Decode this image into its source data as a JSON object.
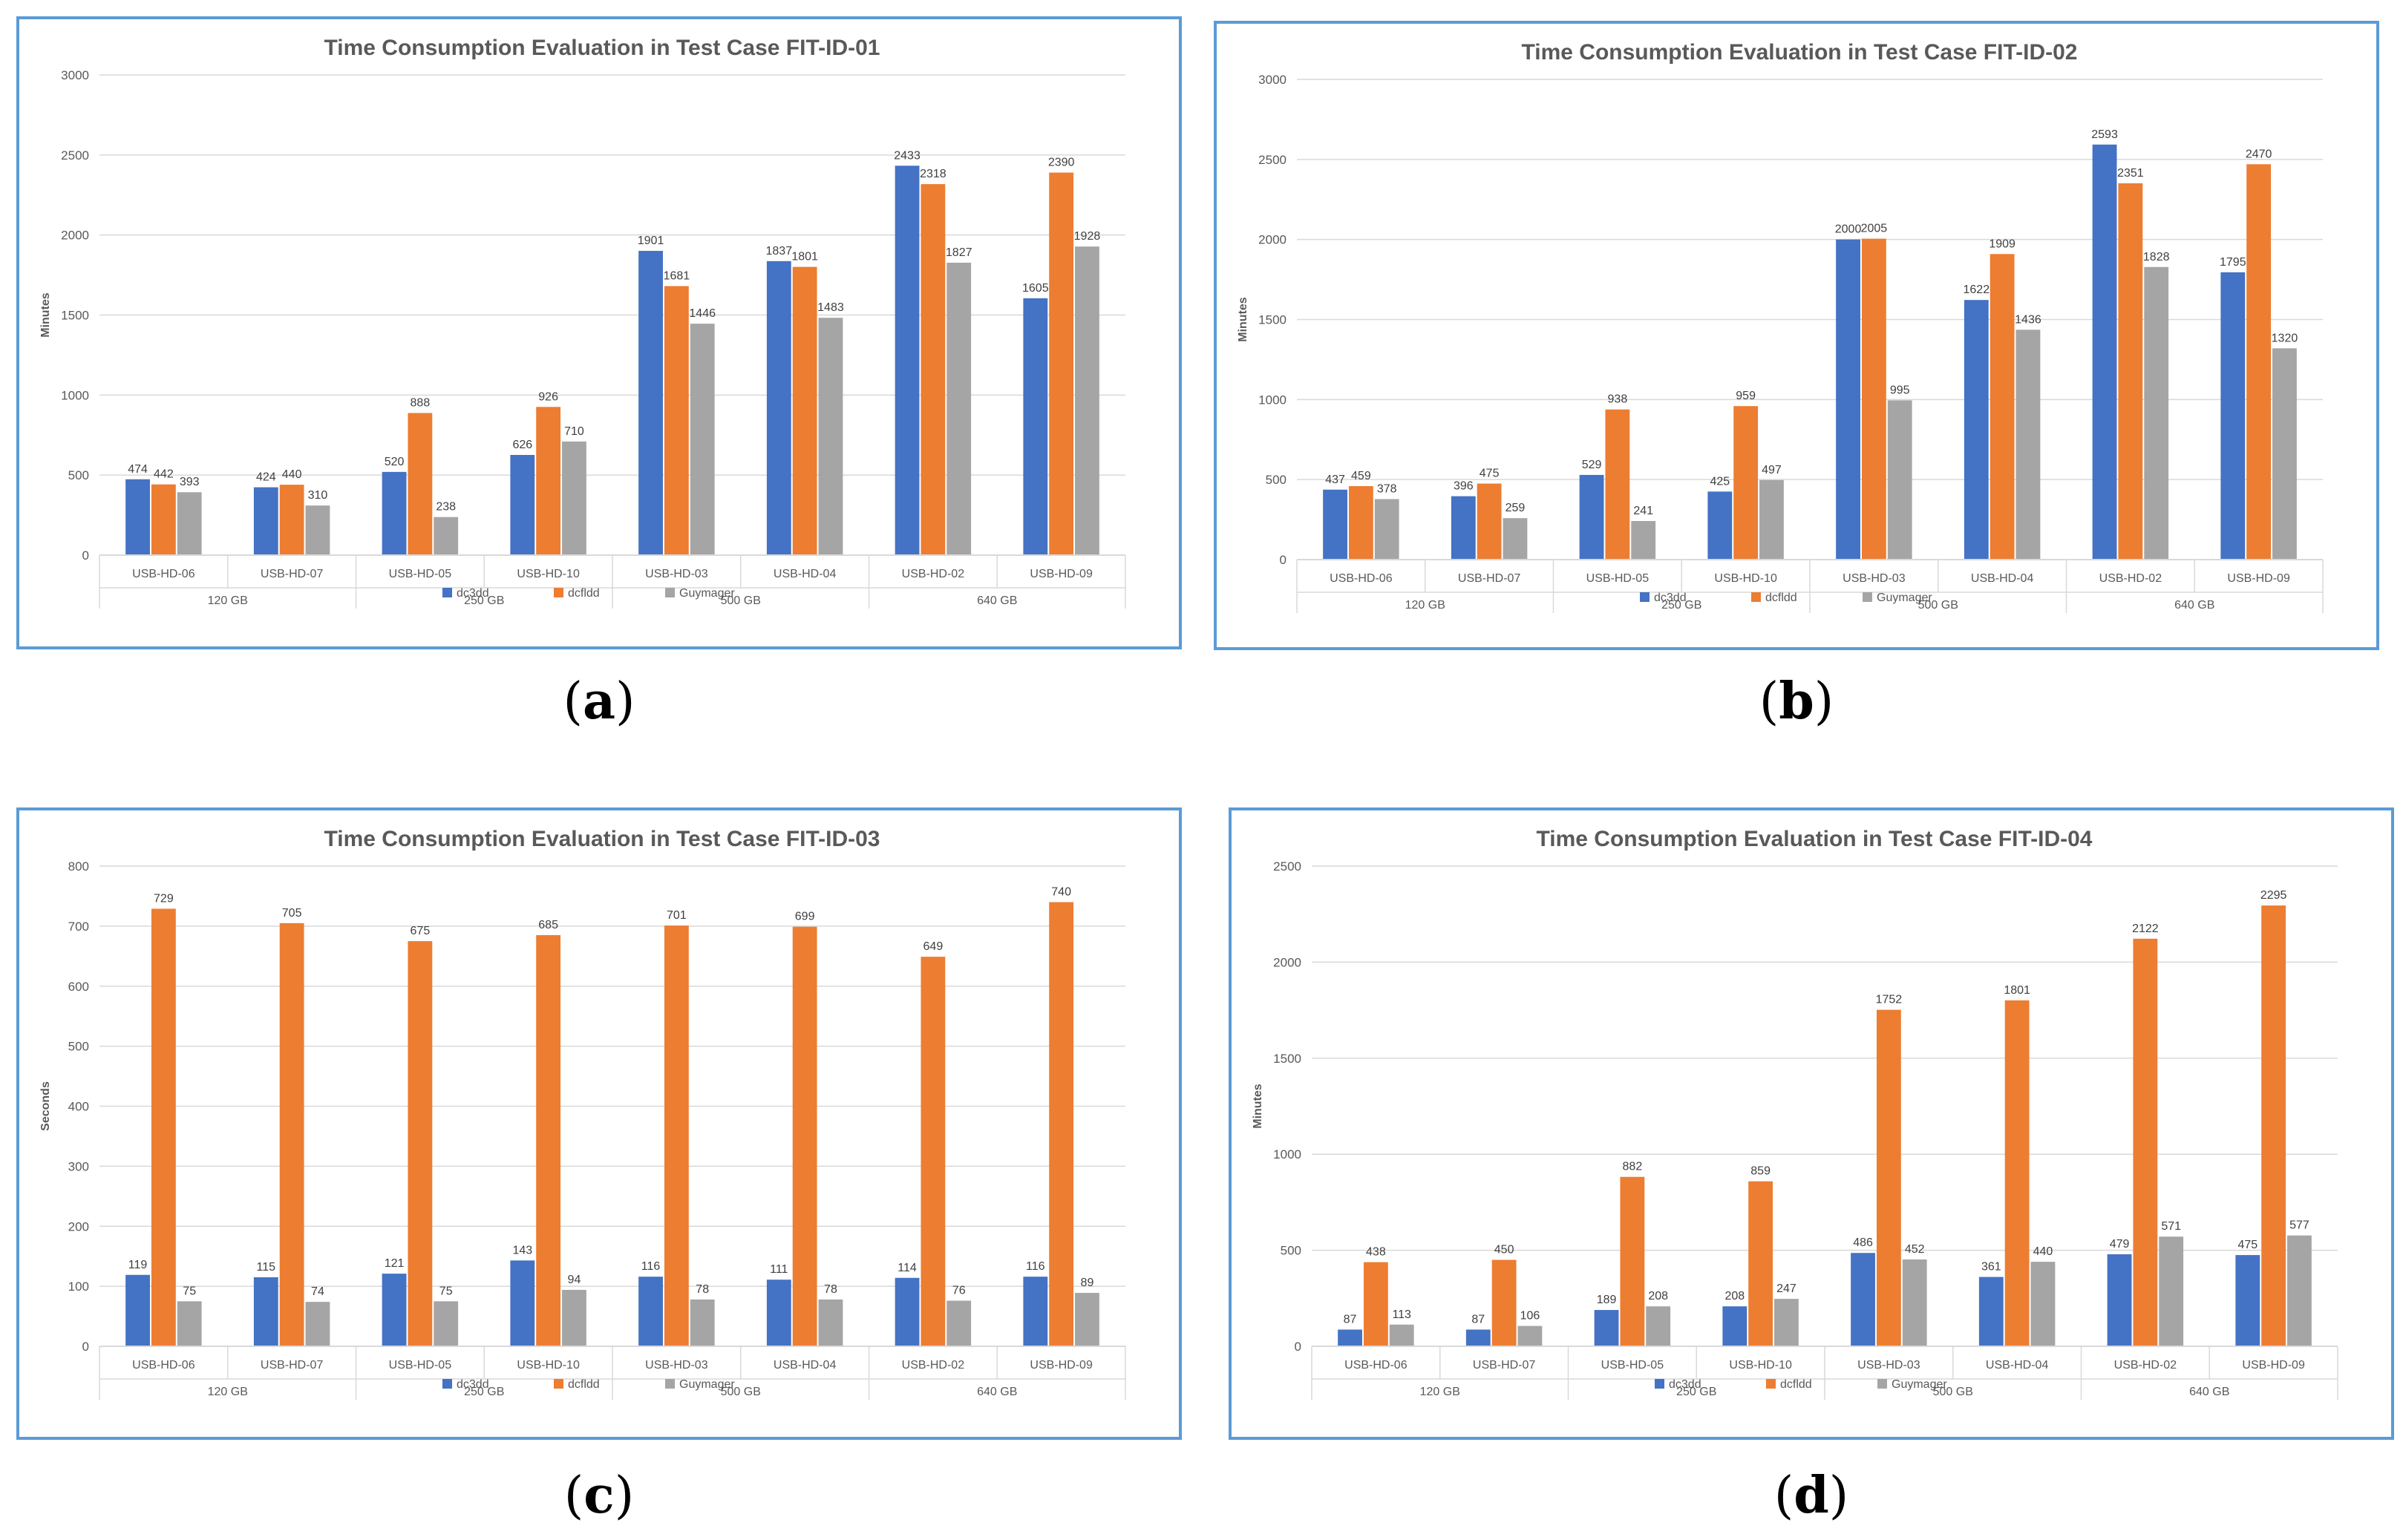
{
  "colors": {
    "dc3dd": "#4472c4",
    "dcfldd": "#ed7d31",
    "Guymager": "#a5a5a5",
    "border": "#5b9bd5",
    "grid": "#d9d9d9",
    "text": "#595959"
  },
  "legend": [
    "dc3dd",
    "dcfldd",
    "Guymager"
  ],
  "captions": [
    "a",
    "b",
    "c",
    "d"
  ],
  "chart_data": [
    {
      "type": "bar",
      "title": "Time Consumption Evaluation in Test Case FIT-ID-01",
      "ylabel": "Minutes",
      "ylim": [
        0,
        3000
      ],
      "yticks": [
        0,
        500,
        1000,
        1500,
        2000,
        2500,
        3000
      ],
      "categories": [
        "USB-HD-06",
        "USB-HD-07",
        "USB-HD-05",
        "USB-HD-10",
        "USB-HD-03",
        "USB-HD-04",
        "USB-HD-02",
        "USB-HD-09"
      ],
      "groups": [
        "120 GB",
        "250 GB",
        "500 GB",
        "640 GB"
      ],
      "series": [
        {
          "name": "dc3dd",
          "values": [
            474,
            424,
            520,
            626,
            1901,
            1837,
            2433,
            1605
          ]
        },
        {
          "name": "dcfldd",
          "values": [
            442,
            440,
            888,
            926,
            1681,
            1801,
            2318,
            2390
          ]
        },
        {
          "name": "Guymager",
          "values": [
            393,
            310,
            238,
            710,
            1446,
            1483,
            1827,
            1928
          ]
        }
      ]
    },
    {
      "type": "bar",
      "title": "Time Consumption Evaluation in Test Case FIT-ID-02",
      "ylabel": "Minutes",
      "ylim": [
        0,
        3000
      ],
      "yticks": [
        0,
        500,
        1000,
        1500,
        2000,
        2500,
        3000
      ],
      "categories": [
        "USB-HD-06",
        "USB-HD-07",
        "USB-HD-05",
        "USB-HD-10",
        "USB-HD-03",
        "USB-HD-04",
        "USB-HD-02",
        "USB-HD-09"
      ],
      "groups": [
        "120 GB",
        "250 GB",
        "500 GB",
        "640 GB"
      ],
      "series": [
        {
          "name": "dc3dd",
          "values": [
            437,
            396,
            529,
            425,
            2000,
            1622,
            2593,
            1795
          ]
        },
        {
          "name": "dcfldd",
          "values": [
            459,
            475,
            938,
            959,
            2005,
            1909,
            2351,
            2470
          ]
        },
        {
          "name": "Guymager",
          "values": [
            378,
            259,
            241,
            497,
            995,
            1436,
            1828,
            1320
          ]
        }
      ]
    },
    {
      "type": "bar",
      "title": "Time Consumption Evaluation in Test Case FIT-ID-03",
      "ylabel": "Seconds",
      "ylim": [
        0,
        800
      ],
      "yticks": [
        0,
        100,
        200,
        300,
        400,
        500,
        600,
        700,
        800
      ],
      "categories": [
        "USB-HD-06",
        "USB-HD-07",
        "USB-HD-05",
        "USB-HD-10",
        "USB-HD-03",
        "USB-HD-04",
        "USB-HD-02",
        "USB-HD-09"
      ],
      "groups": [
        "120 GB",
        "250 GB",
        "500 GB",
        "640 GB"
      ],
      "series": [
        {
          "name": "dc3dd",
          "values": [
            119,
            115,
            121,
            143,
            116,
            111,
            114,
            116
          ]
        },
        {
          "name": "dcfldd",
          "values": [
            729,
            705,
            675,
            685,
            701,
            699,
            649,
            740
          ]
        },
        {
          "name": "Guymager",
          "values": [
            75,
            74,
            75,
            94,
            78,
            78,
            76,
            89
          ]
        }
      ]
    },
    {
      "type": "bar",
      "title": "Time Consumption Evaluation in Test Case FIT-ID-04",
      "ylabel": "Minutes",
      "ylim": [
        0,
        2500
      ],
      "yticks": [
        0,
        500,
        1000,
        1500,
        2000,
        2500
      ],
      "categories": [
        "USB-HD-06",
        "USB-HD-07",
        "USB-HD-05",
        "USB-HD-10",
        "USB-HD-03",
        "USB-HD-04",
        "USB-HD-02",
        "USB-HD-09"
      ],
      "groups": [
        "120 GB",
        "250 GB",
        "500 GB",
        "640 GB"
      ],
      "series": [
        {
          "name": "dc3dd",
          "values": [
            87,
            87,
            189,
            208,
            486,
            361,
            479,
            475
          ]
        },
        {
          "name": "dcfldd",
          "values": [
            438,
            450,
            882,
            859,
            1752,
            1801,
            2122,
            2295
          ]
        },
        {
          "name": "Guymager",
          "values": [
            113,
            106,
            208,
            247,
            452,
            440,
            571,
            577
          ]
        }
      ]
    }
  ]
}
